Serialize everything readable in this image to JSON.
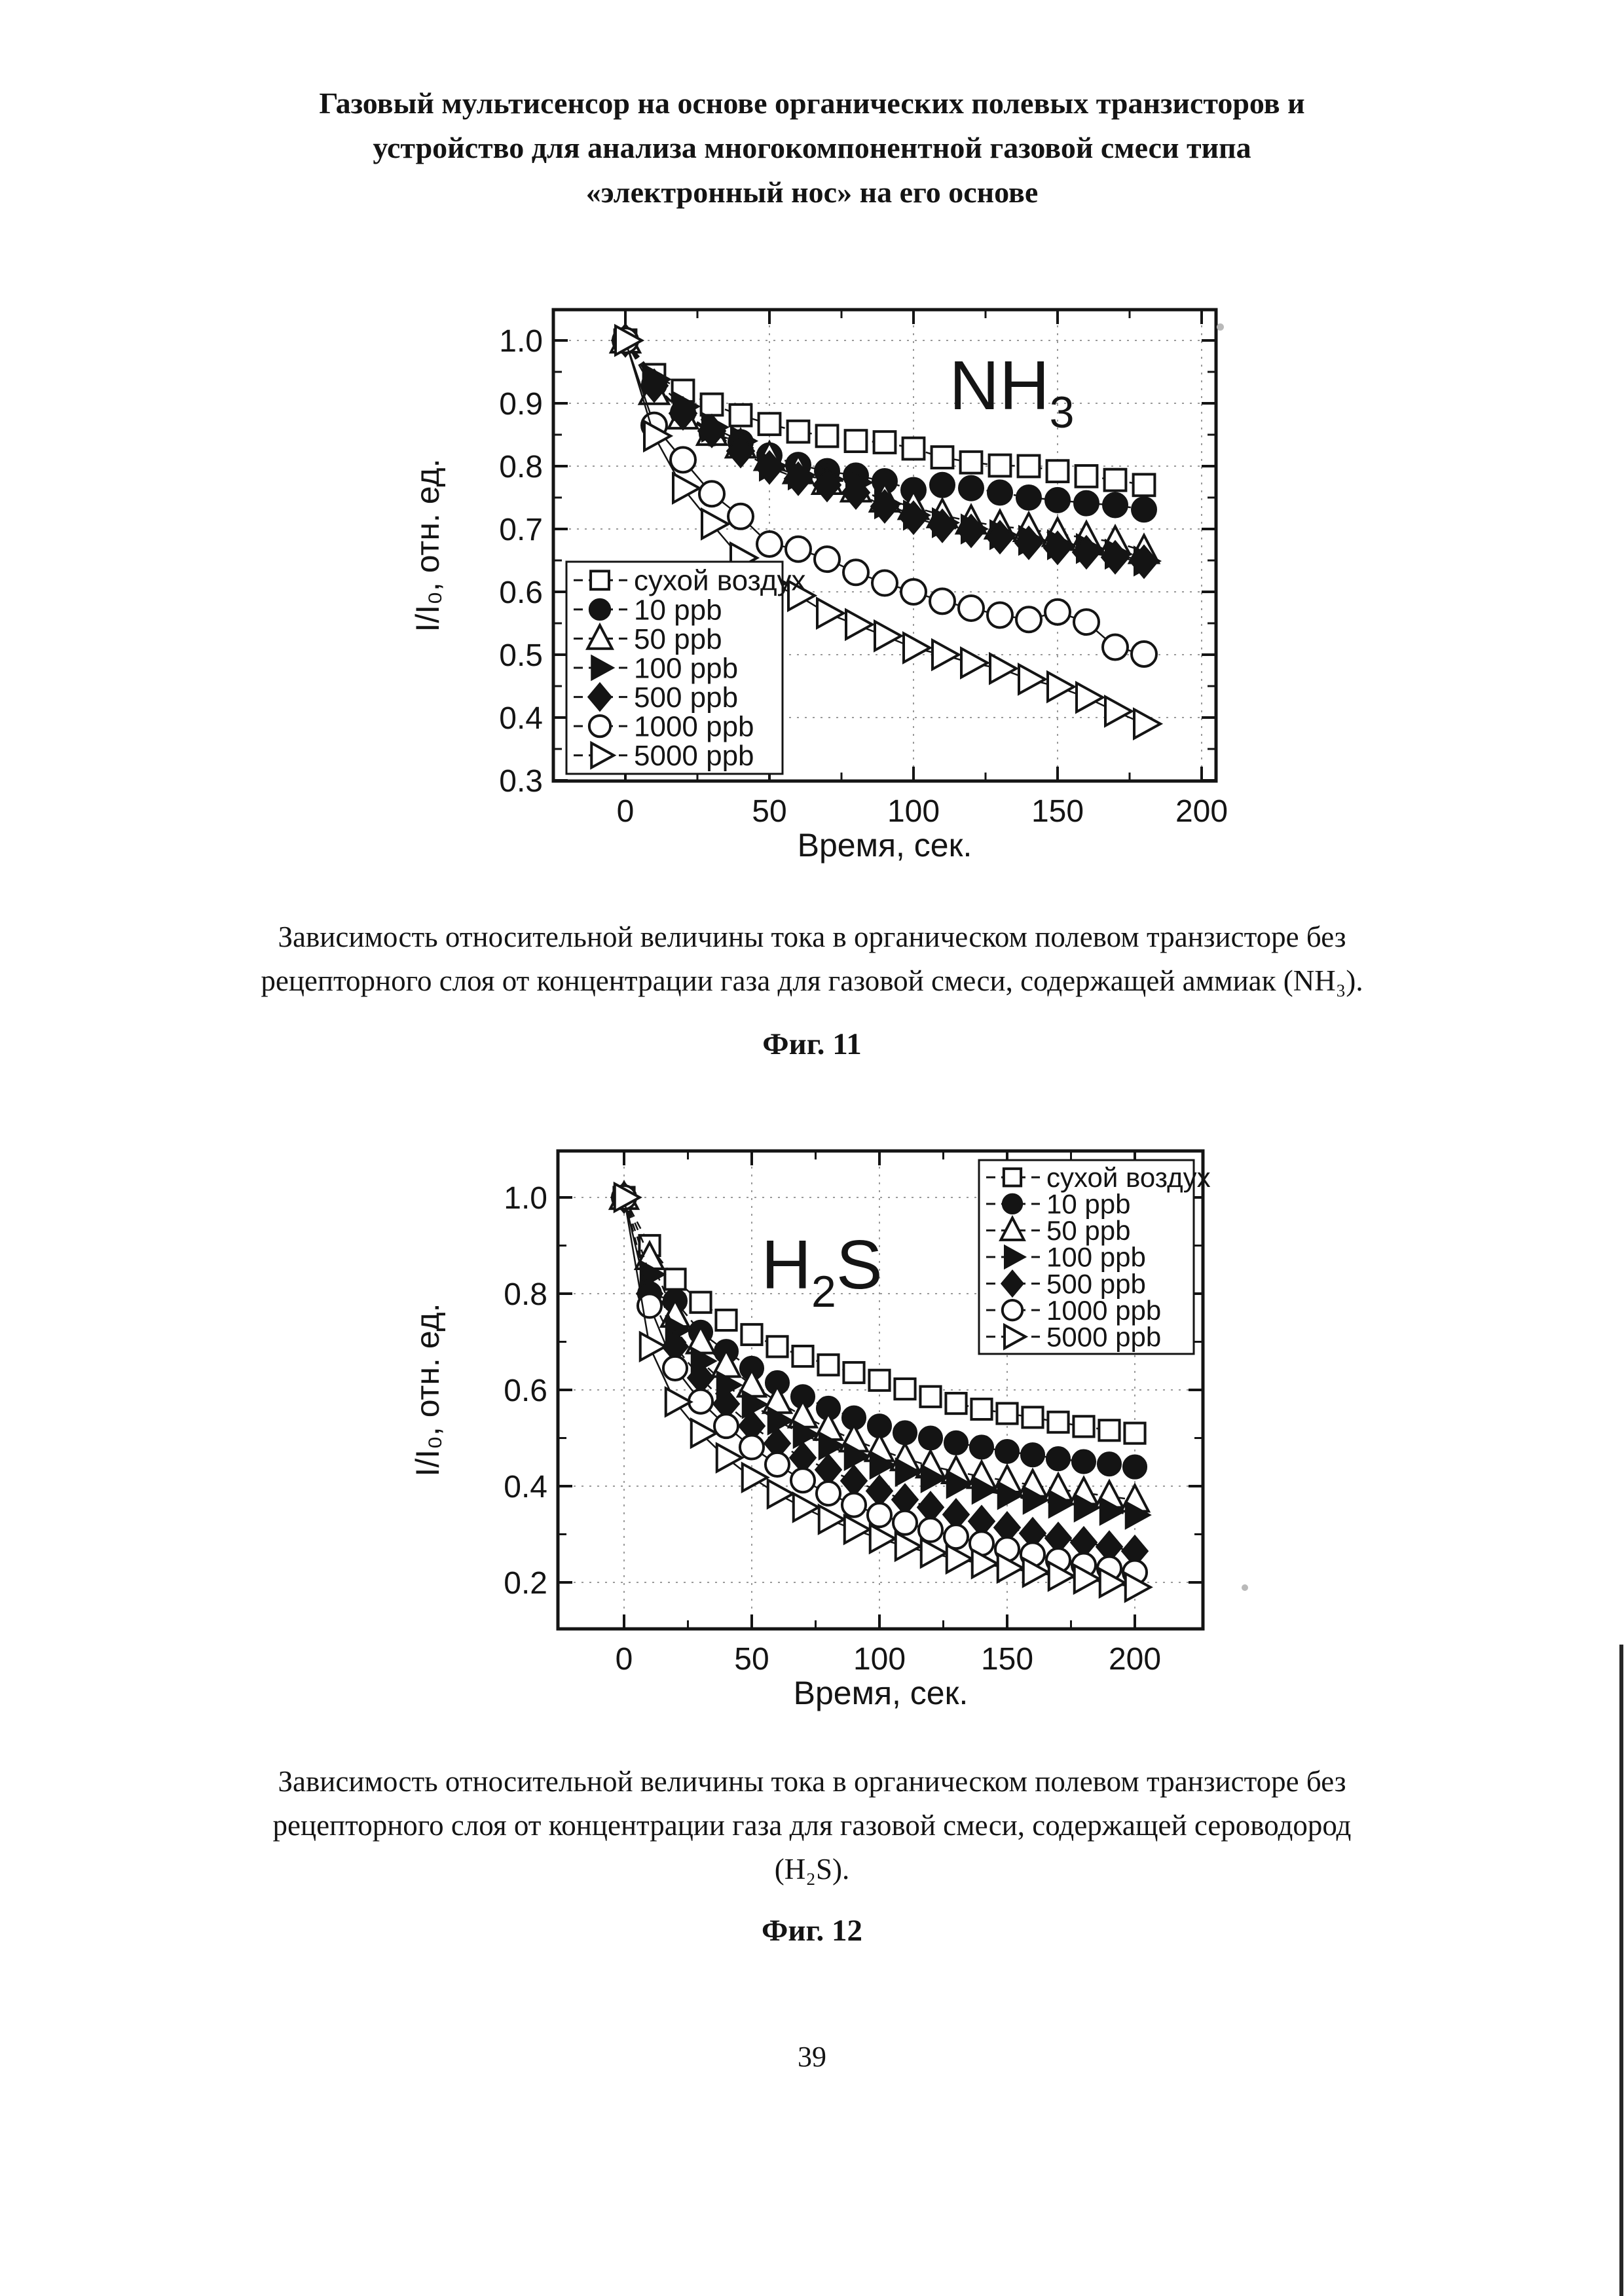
{
  "page": {
    "title_lines": [
      "Газовый мультисенсор на основе органических полевых транзисторов и",
      "устройство для анализа многокомпонентной газовой смеси типа",
      "«электронный нос» на его основе"
    ],
    "number": "39"
  },
  "figure11": {
    "caption_lines": [
      "Зависимость относительной величины тока в органическом полевом транзисторе без",
      "рецепторного слоя от концентрации газа для газовой смеси, содержащей аммиак (NH₃)."
    ],
    "fig_label": "Фиг. 11"
  },
  "figure12": {
    "caption_lines": [
      "Зависимость относительной величины тока в органическом полевом транзисторе без",
      "рецепторного слоя от концентрации газа для газовой смеси, содержащей сероводород",
      "(H₂S)."
    ],
    "fig_label": "Фиг. 12"
  },
  "chart_data": [
    {
      "type": "line",
      "title": {
        "pre": "NH",
        "sub": "3",
        "post": ""
      },
      "xlabel": "Время, сек.",
      "ylabel": "I/I₀, отн. ед.",
      "xlim": [
        -25,
        205
      ],
      "ylim": [
        0.3,
        1.05
      ],
      "xticks": [
        0,
        50,
        100,
        150,
        200
      ],
      "yticks": [
        0.3,
        0.4,
        0.5,
        0.6,
        0.7,
        0.8,
        0.9,
        1.0
      ],
      "grid": true,
      "legend_position": "bottom-left",
      "x": [
        0,
        10,
        20,
        30,
        40,
        50,
        60,
        70,
        80,
        90,
        100,
        110,
        120,
        130,
        140,
        150,
        160,
        170,
        180
      ],
      "series": [
        {
          "key": "dry-air",
          "label": "сухой воздух",
          "marker": "square-open",
          "line_style": "dashed",
          "values": [
            1.0,
            0.945,
            0.92,
            0.898,
            0.881,
            0.867,
            0.855,
            0.848,
            0.84,
            0.838,
            0.828,
            0.814,
            0.806,
            0.801,
            0.8,
            0.792,
            0.784,
            0.778,
            0.77
          ]
        },
        {
          "key": "10-ppb",
          "label": "10 ppb",
          "marker": "circle-filled",
          "line_style": "dashed",
          "values": [
            1.0,
            0.93,
            0.885,
            0.852,
            0.838,
            0.817,
            0.802,
            0.792,
            0.785,
            0.776,
            0.762,
            0.77,
            0.765,
            0.758,
            0.75,
            0.746,
            0.741,
            0.738,
            0.731
          ]
        },
        {
          "key": "50-ppb",
          "label": "50 ppb",
          "marker": "triangle-up-open",
          "line_style": "dashed",
          "values": [
            1.0,
            0.918,
            0.879,
            0.853,
            0.833,
            0.813,
            0.792,
            0.775,
            0.763,
            0.747,
            0.735,
            0.722,
            0.712,
            0.704,
            0.7,
            0.692,
            0.686,
            0.679,
            0.665
          ]
        },
        {
          "key": "100-ppb",
          "label": "100 ppb",
          "marker": "triangle-right-filled",
          "line_style": "dashed",
          "values": [
            1.0,
            0.938,
            0.895,
            0.862,
            0.84,
            0.8,
            0.786,
            0.779,
            0.774,
            0.74,
            0.722,
            0.71,
            0.7,
            0.691,
            0.682,
            0.675,
            0.669,
            0.66,
            0.649
          ]
        },
        {
          "key": "500-ppb",
          "label": "500 ppb",
          "marker": "diamond-filled",
          "line_style": "dashed",
          "values": [
            1.0,
            0.928,
            0.884,
            0.856,
            0.824,
            0.798,
            0.78,
            0.77,
            0.758,
            0.736,
            0.718,
            0.705,
            0.697,
            0.687,
            0.678,
            0.67,
            0.663,
            0.655,
            0.648
          ]
        },
        {
          "key": "1000-ppb",
          "label": "1000 ppb",
          "marker": "circle-open",
          "line_style": "solid",
          "values": [
            1.0,
            0.865,
            0.81,
            0.756,
            0.72,
            0.676,
            0.668,
            0.652,
            0.631,
            0.614,
            0.6,
            0.585,
            0.574,
            0.563,
            0.556,
            0.568,
            0.552,
            0.512,
            0.501
          ]
        },
        {
          "key": "5000-ppb",
          "label": "5000 ppb",
          "marker": "triangle-right-open",
          "line_style": "solid",
          "values": [
            1.0,
            0.848,
            0.765,
            0.708,
            0.654,
            0.614,
            0.594,
            0.566,
            0.548,
            0.53,
            0.511,
            0.5,
            0.487,
            0.478,
            0.461,
            0.449,
            0.432,
            0.41,
            0.39
          ]
        }
      ]
    },
    {
      "type": "line",
      "title": {
        "pre": "H",
        "sub": "2",
        "post": "S"
      },
      "xlabel": "Время, сек.",
      "ylabel": "I/I₀, отн. ед.",
      "xlim": [
        -26,
        226
      ],
      "ylim": [
        0.1,
        1.1
      ],
      "xticks": [
        0,
        50,
        100,
        150,
        200
      ],
      "yticks": [
        0.2,
        0.4,
        0.6,
        0.8,
        1.0
      ],
      "grid": true,
      "legend_position": "top-right",
      "x": [
        0,
        10,
        20,
        30,
        40,
        50,
        60,
        70,
        80,
        90,
        100,
        110,
        120,
        130,
        140,
        150,
        160,
        170,
        180,
        190,
        200
      ],
      "series": [
        {
          "key": "dry-air",
          "label": "сухой воздух",
          "marker": "square-open",
          "line_style": "dashed",
          "values": [
            1.0,
            0.9,
            0.83,
            0.782,
            0.745,
            0.715,
            0.69,
            0.67,
            0.652,
            0.636,
            0.62,
            0.602,
            0.586,
            0.572,
            0.56,
            0.551,
            0.543,
            0.533,
            0.524,
            0.516,
            0.51
          ]
        },
        {
          "key": "10-ppb",
          "label": "10 ppb",
          "marker": "circle-filled",
          "line_style": "dashed",
          "values": [
            1.0,
            0.8,
            0.785,
            0.72,
            0.68,
            0.645,
            0.615,
            0.586,
            0.562,
            0.542,
            0.525,
            0.511,
            0.5,
            0.49,
            0.481,
            0.472,
            0.465,
            0.457,
            0.451,
            0.446,
            0.44
          ]
        },
        {
          "key": "50-ppb",
          "label": "50 ppb",
          "marker": "triangle-up-open",
          "line_style": "dashed",
          "values": [
            1.0,
            0.875,
            0.755,
            0.7,
            0.651,
            0.61,
            0.576,
            0.546,
            0.52,
            0.496,
            0.476,
            0.457,
            0.442,
            0.43,
            0.42,
            0.411,
            0.402,
            0.394,
            0.386,
            0.379,
            0.371
          ]
        },
        {
          "key": "100-ppb",
          "label": "100 ppb",
          "marker": "triangle-right-filled",
          "line_style": "dashed",
          "values": [
            1.0,
            0.84,
            0.725,
            0.66,
            0.61,
            0.57,
            0.536,
            0.508,
            0.484,
            0.462,
            0.444,
            0.429,
            0.416,
            0.404,
            0.392,
            0.381,
            0.371,
            0.363,
            0.355,
            0.348,
            0.34
          ]
        },
        {
          "key": "500-ppb",
          "label": "500 ppb",
          "marker": "diamond-filled",
          "line_style": "dashed",
          "values": [
            1.0,
            0.8,
            0.69,
            0.625,
            0.571,
            0.525,
            0.489,
            0.459,
            0.434,
            0.411,
            0.39,
            0.372,
            0.356,
            0.341,
            0.327,
            0.314,
            0.302,
            0.292,
            0.283,
            0.274,
            0.265
          ]
        },
        {
          "key": "1000-ppb",
          "label": "1000 ppb",
          "marker": "circle-open",
          "line_style": "solid",
          "values": [
            1.0,
            0.775,
            0.645,
            0.576,
            0.525,
            0.481,
            0.445,
            0.412,
            0.385,
            0.361,
            0.34,
            0.324,
            0.309,
            0.295,
            0.281,
            0.269,
            0.258,
            0.246,
            0.236,
            0.229,
            0.221
          ]
        },
        {
          "key": "5000-ppb",
          "label": "5000 ppb",
          "marker": "triangle-right-open",
          "line_style": "solid",
          "values": [
            1.0,
            0.69,
            0.575,
            0.51,
            0.459,
            0.418,
            0.384,
            0.356,
            0.331,
            0.31,
            0.291,
            0.275,
            0.261,
            0.249,
            0.239,
            0.23,
            0.221,
            0.213,
            0.207,
            0.199,
            0.19
          ]
        }
      ]
    }
  ]
}
